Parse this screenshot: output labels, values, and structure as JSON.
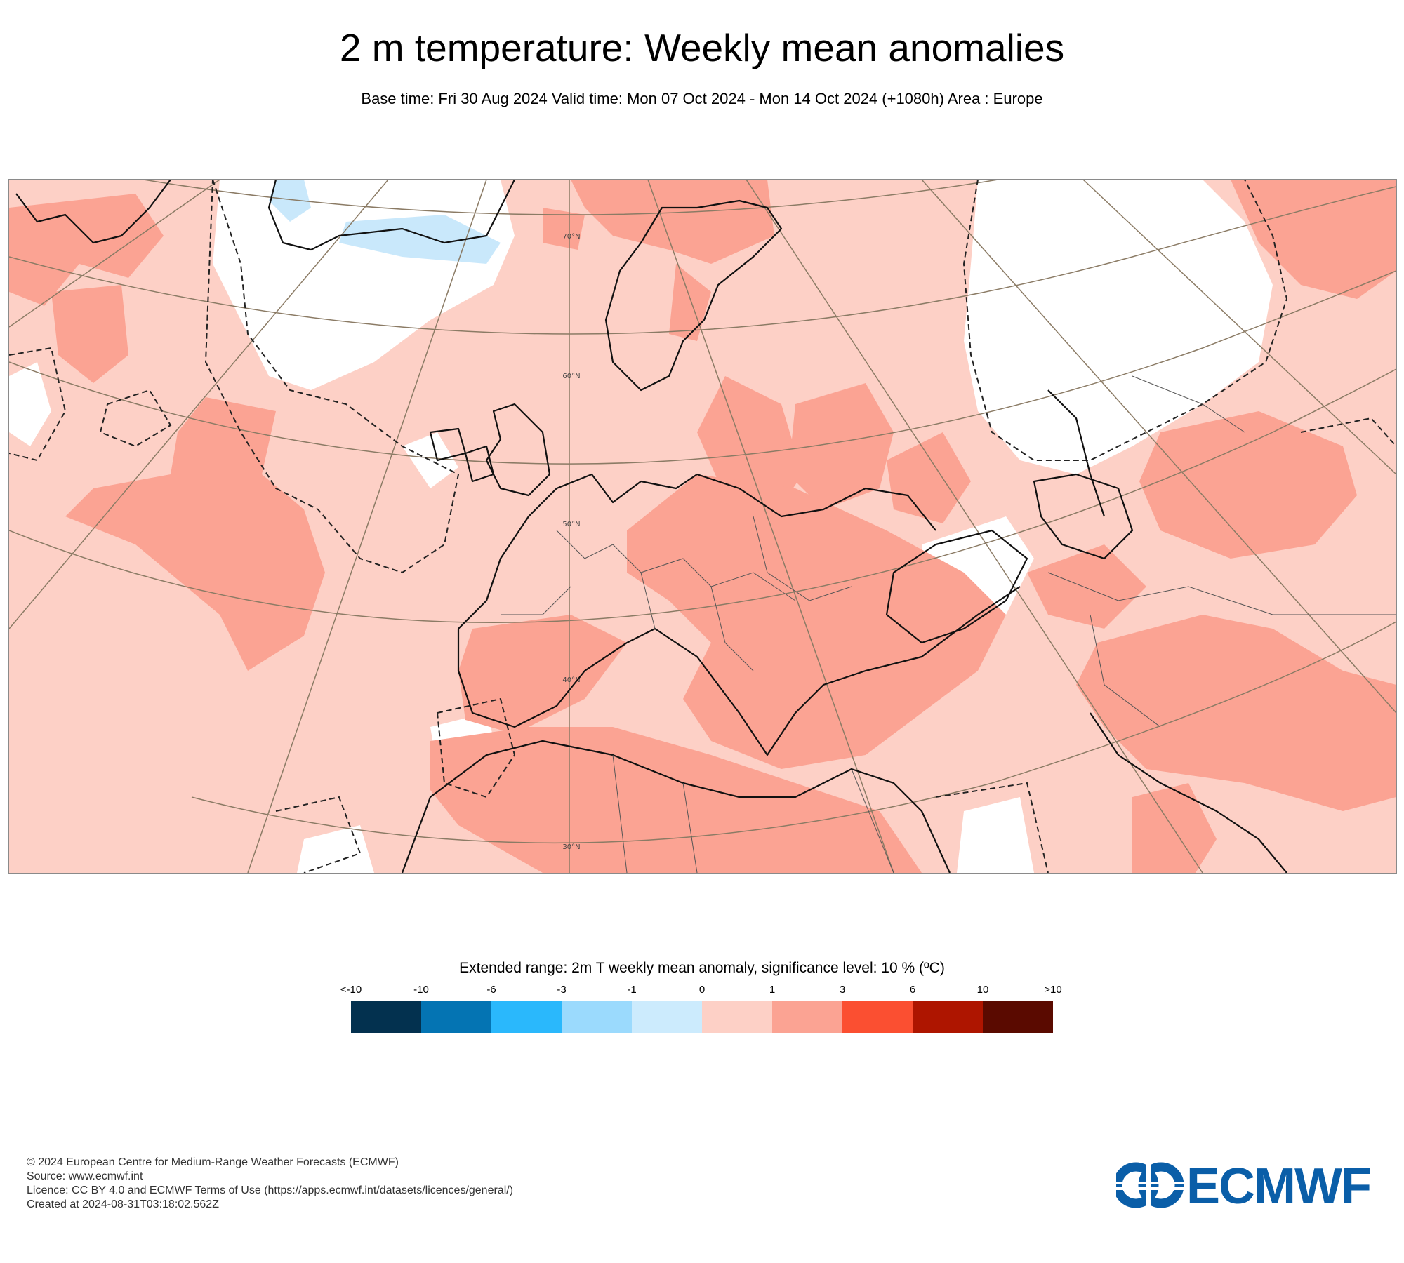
{
  "title": "2 m temperature: Weekly mean anomalies",
  "subtitle": "Base time: Fri 30 Aug 2024 Valid time: Mon 07 Oct 2024 - Mon 14 Oct 2024 (+1080h) Area : Europe",
  "map": {
    "latitude_labels": [
      "70°N",
      "60°N",
      "50°N",
      "40°N",
      "30°N"
    ],
    "colors": {
      "background": "#ffffff",
      "anomaly_0_1": "#fdd0c6",
      "anomaly_1_3": "#fba393",
      "coastline": "#111111",
      "graticule": "#8b7b65",
      "significance": "#222222",
      "ice": "#c9e8fb"
    }
  },
  "legend": {
    "title": "Extended range: 2m T weekly mean anomaly, significance level: 10 % (ºC)",
    "labels": [
      "<-10",
      "-10",
      "-6",
      "-3",
      "-1",
      "0",
      "1",
      "3",
      "6",
      "10",
      ">10"
    ],
    "colors": [
      "#03314f",
      "#0474b3",
      "#2ab8fc",
      "#9bdafd",
      "#ccebfd",
      "#fdd0c6",
      "#fba393",
      "#fb4f31",
      "#ae1500",
      "#5a0a00"
    ]
  },
  "footer": {
    "line1": "© 2024 European Centre for Medium-Range Weather Forecasts (ECMWF)",
    "line2": "Source: www.ecmwf.int",
    "line3": "Licence: CC BY 4.0 and ECMWF Terms of Use (https://apps.ecmwf.int/datasets/licences/general/)",
    "line4": "Created at 2024-08-31T03:18:02.562Z"
  },
  "logo": {
    "text": "ECMWF",
    "color": "#0a5ea8"
  }
}
